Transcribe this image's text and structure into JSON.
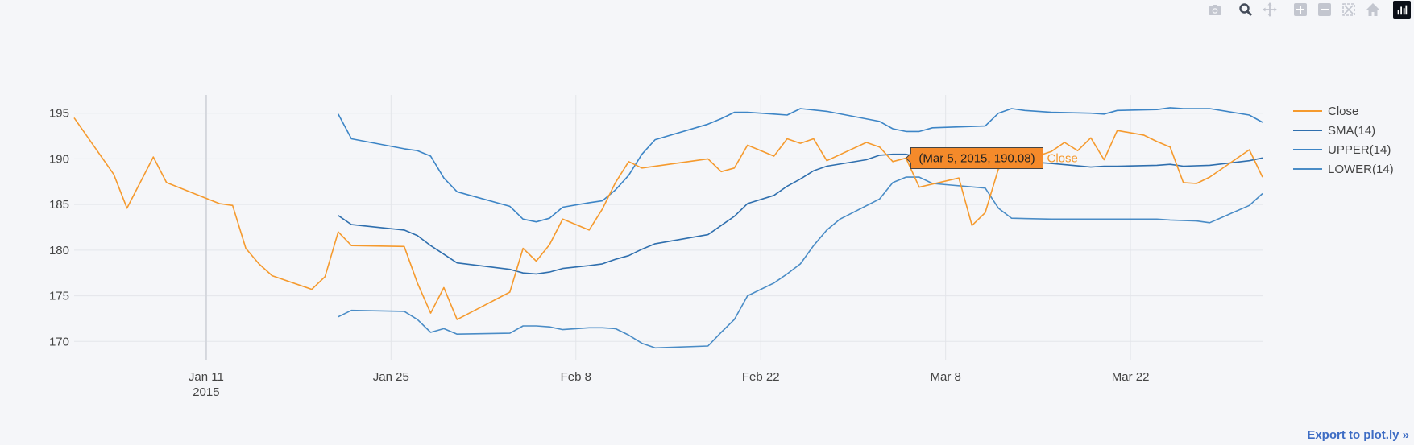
{
  "modebar": {
    "buttons": [
      "camera-icon",
      "zoom-icon",
      "pan-icon",
      "zoom-in-icon",
      "zoom-out-icon",
      "autoscale-icon",
      "home-icon",
      "plotly-logo-icon"
    ]
  },
  "export_link": "Export to plot.ly »",
  "hover": {
    "label": "(Mar 5, 2015, 190.08)",
    "series": "Close",
    "date": "2015-03-05",
    "value": 190.08
  },
  "colors": {
    "close": "#f59a2e",
    "sma": "#2f6fae",
    "upper": "#3d85c6",
    "lower": "#4a8cc6",
    "hover_bg": "#f58a2a",
    "background": "#f5f6f9"
  },
  "chart_data": {
    "type": "line",
    "title": "",
    "xlabel": "",
    "ylabel": "",
    "xlim": [
      "2015-01-01",
      "2015-04-01"
    ],
    "ylim": [
      168,
      197
    ],
    "x_ticks": [
      {
        "date": "2015-01-11",
        "label": "Jan 11",
        "sub": "2015"
      },
      {
        "date": "2015-01-25",
        "label": "Jan 25",
        "sub": ""
      },
      {
        "date": "2015-02-08",
        "label": "Feb 8",
        "sub": ""
      },
      {
        "date": "2015-02-22",
        "label": "Feb 22",
        "sub": ""
      },
      {
        "date": "2015-03-08",
        "label": "Mar 8",
        "sub": ""
      },
      {
        "date": "2015-03-22",
        "label": "Mar 22",
        "sub": ""
      }
    ],
    "y_ticks": [
      170,
      175,
      180,
      185,
      190,
      195
    ],
    "grid": true,
    "legend_position": "right",
    "series": [
      {
        "name": "Close",
        "color": "#f59a2e",
        "points": [
          [
            "2015-01-01",
            194.5
          ],
          [
            "2015-01-04",
            188.3
          ],
          [
            "2015-01-05",
            184.6
          ],
          [
            "2015-01-07",
            190.2
          ],
          [
            "2015-01-08",
            187.4
          ],
          [
            "2015-01-12",
            185.1
          ],
          [
            "2015-01-13",
            184.9
          ],
          [
            "2015-01-14",
            180.2
          ],
          [
            "2015-01-15",
            178.5
          ],
          [
            "2015-01-16",
            177.2
          ],
          [
            "2015-01-19",
            175.7
          ],
          [
            "2015-01-20",
            177.1
          ],
          [
            "2015-01-21",
            182.0
          ],
          [
            "2015-01-22",
            180.5
          ],
          [
            "2015-01-26",
            180.4
          ],
          [
            "2015-01-27",
            176.4
          ],
          [
            "2015-01-28",
            173.1
          ],
          [
            "2015-01-29",
            175.9
          ],
          [
            "2015-01-30",
            172.4
          ],
          [
            "2015-02-03",
            175.4
          ],
          [
            "2015-02-04",
            180.2
          ],
          [
            "2015-02-05",
            178.8
          ],
          [
            "2015-02-06",
            180.6
          ],
          [
            "2015-02-07",
            183.4
          ],
          [
            "2015-02-09",
            182.2
          ],
          [
            "2015-02-10",
            184.5
          ],
          [
            "2015-02-11",
            187.4
          ],
          [
            "2015-02-12",
            189.7
          ],
          [
            "2015-02-13",
            189.0
          ],
          [
            "2015-02-18",
            190.0
          ],
          [
            "2015-02-19",
            188.6
          ],
          [
            "2015-02-20",
            189.0
          ],
          [
            "2015-02-21",
            191.5
          ],
          [
            "2015-02-23",
            190.3
          ],
          [
            "2015-02-24",
            192.2
          ],
          [
            "2015-02-25",
            191.7
          ],
          [
            "2015-02-26",
            192.2
          ],
          [
            "2015-02-27",
            189.8
          ],
          [
            "2015-03-02",
            191.8
          ],
          [
            "2015-03-03",
            191.3
          ],
          [
            "2015-03-04",
            189.7
          ],
          [
            "2015-03-05",
            190.08
          ],
          [
            "2015-03-06",
            186.9
          ],
          [
            "2015-03-09",
            187.9
          ],
          [
            "2015-03-10",
            182.7
          ],
          [
            "2015-03-11",
            184.1
          ],
          [
            "2015-03-12",
            188.9
          ],
          [
            "2015-03-16",
            190.8
          ],
          [
            "2015-03-17",
            191.8
          ],
          [
            "2015-03-18",
            190.9
          ],
          [
            "2015-03-19",
            192.3
          ],
          [
            "2015-03-20",
            189.9
          ],
          [
            "2015-03-21",
            193.1
          ],
          [
            "2015-03-23",
            192.6
          ],
          [
            "2015-03-24",
            191.9
          ],
          [
            "2015-03-25",
            191.3
          ],
          [
            "2015-03-26",
            187.4
          ],
          [
            "2015-03-27",
            187.3
          ],
          [
            "2015-03-28",
            188.0
          ],
          [
            "2015-03-31",
            191.0
          ],
          [
            "2015-04-01",
            188.0
          ]
        ]
      },
      {
        "name": "SMA(14)",
        "color": "#2f6fae",
        "points": [
          [
            "2015-01-21",
            183.8
          ],
          [
            "2015-01-22",
            182.8
          ],
          [
            "2015-01-26",
            182.2
          ],
          [
            "2015-01-27",
            181.6
          ],
          [
            "2015-01-28",
            180.5
          ],
          [
            "2015-01-30",
            178.6
          ],
          [
            "2015-02-03",
            177.9
          ],
          [
            "2015-02-04",
            177.5
          ],
          [
            "2015-02-05",
            177.4
          ],
          [
            "2015-02-06",
            177.6
          ],
          [
            "2015-02-07",
            178.0
          ],
          [
            "2015-02-09",
            178.3
          ],
          [
            "2015-02-10",
            178.5
          ],
          [
            "2015-02-11",
            179.0
          ],
          [
            "2015-02-12",
            179.4
          ],
          [
            "2015-02-13",
            180.1
          ],
          [
            "2015-02-14",
            180.7
          ],
          [
            "2015-02-18",
            181.7
          ],
          [
            "2015-02-19",
            182.7
          ],
          [
            "2015-02-20",
            183.7
          ],
          [
            "2015-02-21",
            185.1
          ],
          [
            "2015-02-23",
            186.0
          ],
          [
            "2015-02-24",
            187.0
          ],
          [
            "2015-02-25",
            187.8
          ],
          [
            "2015-02-26",
            188.7
          ],
          [
            "2015-02-27",
            189.2
          ],
          [
            "2015-03-02",
            189.9
          ],
          [
            "2015-03-03",
            190.4
          ],
          [
            "2015-03-04",
            190.5
          ],
          [
            "2015-03-05",
            190.5
          ],
          [
            "2015-03-06",
            190.1
          ],
          [
            "2015-03-09",
            190.2
          ],
          [
            "2015-03-16",
            189.5
          ],
          [
            "2015-03-19",
            189.1
          ],
          [
            "2015-03-20",
            189.2
          ],
          [
            "2015-03-21",
            189.2
          ],
          [
            "2015-03-24",
            189.3
          ],
          [
            "2015-03-25",
            189.4
          ],
          [
            "2015-03-26",
            189.2
          ],
          [
            "2015-03-28",
            189.3
          ],
          [
            "2015-03-31",
            189.8
          ],
          [
            "2015-04-01",
            190.1
          ]
        ]
      },
      {
        "name": "UPPER(14)",
        "color": "#3d85c6",
        "points": [
          [
            "2015-01-21",
            194.9
          ],
          [
            "2015-01-22",
            192.2
          ],
          [
            "2015-01-26",
            191.1
          ],
          [
            "2015-01-27",
            190.9
          ],
          [
            "2015-01-28",
            190.3
          ],
          [
            "2015-01-29",
            187.9
          ],
          [
            "2015-01-30",
            186.4
          ],
          [
            "2015-02-03",
            184.8
          ],
          [
            "2015-02-04",
            183.4
          ],
          [
            "2015-02-05",
            183.1
          ],
          [
            "2015-02-06",
            183.5
          ],
          [
            "2015-02-07",
            184.7
          ],
          [
            "2015-02-09",
            185.2
          ],
          [
            "2015-02-10",
            185.4
          ],
          [
            "2015-02-11",
            186.6
          ],
          [
            "2015-02-12",
            188.2
          ],
          [
            "2015-02-13",
            190.5
          ],
          [
            "2015-02-14",
            192.1
          ],
          [
            "2015-02-18",
            193.8
          ],
          [
            "2015-02-19",
            194.4
          ],
          [
            "2015-02-20",
            195.1
          ],
          [
            "2015-02-21",
            195.1
          ],
          [
            "2015-02-23",
            194.9
          ],
          [
            "2015-02-24",
            194.8
          ],
          [
            "2015-02-25",
            195.5
          ],
          [
            "2015-02-27",
            195.2
          ],
          [
            "2015-03-03",
            194.1
          ],
          [
            "2015-03-04",
            193.3
          ],
          [
            "2015-03-05",
            193.0
          ],
          [
            "2015-03-06",
            193.0
          ],
          [
            "2015-03-07",
            193.4
          ],
          [
            "2015-03-09",
            193.5
          ],
          [
            "2015-03-11",
            193.6
          ],
          [
            "2015-03-12",
            195.0
          ],
          [
            "2015-03-13",
            195.5
          ],
          [
            "2015-03-14",
            195.3
          ],
          [
            "2015-03-16",
            195.1
          ],
          [
            "2015-03-19",
            195.0
          ],
          [
            "2015-03-20",
            194.9
          ],
          [
            "2015-03-21",
            195.3
          ],
          [
            "2015-03-24",
            195.4
          ],
          [
            "2015-03-25",
            195.6
          ],
          [
            "2015-03-26",
            195.5
          ],
          [
            "2015-03-28",
            195.5
          ],
          [
            "2015-03-31",
            194.8
          ],
          [
            "2015-04-01",
            194.0
          ]
        ]
      },
      {
        "name": "LOWER(14)",
        "color": "#4a8cc6",
        "points": [
          [
            "2015-01-21",
            172.7
          ],
          [
            "2015-01-22",
            173.4
          ],
          [
            "2015-01-26",
            173.3
          ],
          [
            "2015-01-27",
            172.4
          ],
          [
            "2015-01-28",
            171.0
          ],
          [
            "2015-01-29",
            171.4
          ],
          [
            "2015-01-30",
            170.8
          ],
          [
            "2015-02-03",
            170.9
          ],
          [
            "2015-02-04",
            171.7
          ],
          [
            "2015-02-05",
            171.7
          ],
          [
            "2015-02-06",
            171.6
          ],
          [
            "2015-02-07",
            171.3
          ],
          [
            "2015-02-09",
            171.5
          ],
          [
            "2015-02-10",
            171.5
          ],
          [
            "2015-02-11",
            171.4
          ],
          [
            "2015-02-12",
            170.7
          ],
          [
            "2015-02-13",
            169.8
          ],
          [
            "2015-02-14",
            169.3
          ],
          [
            "2015-02-18",
            169.5
          ],
          [
            "2015-02-19",
            171.0
          ],
          [
            "2015-02-20",
            172.4
          ],
          [
            "2015-02-21",
            175.0
          ],
          [
            "2015-02-23",
            176.4
          ],
          [
            "2015-02-24",
            177.4
          ],
          [
            "2015-02-25",
            178.5
          ],
          [
            "2015-02-26",
            180.5
          ],
          [
            "2015-02-27",
            182.2
          ],
          [
            "2015-02-28",
            183.4
          ],
          [
            "2015-03-03",
            185.6
          ],
          [
            "2015-03-04",
            187.4
          ],
          [
            "2015-03-05",
            188.0
          ],
          [
            "2015-03-06",
            188.0
          ],
          [
            "2015-03-07",
            187.3
          ],
          [
            "2015-03-11",
            186.8
          ],
          [
            "2015-03-12",
            184.6
          ],
          [
            "2015-03-13",
            183.5
          ],
          [
            "2015-03-16",
            183.4
          ],
          [
            "2015-03-24",
            183.4
          ],
          [
            "2015-03-25",
            183.3
          ],
          [
            "2015-03-27",
            183.2
          ],
          [
            "2015-03-28",
            183.0
          ],
          [
            "2015-03-31",
            184.9
          ],
          [
            "2015-04-01",
            186.2
          ]
        ]
      }
    ]
  }
}
